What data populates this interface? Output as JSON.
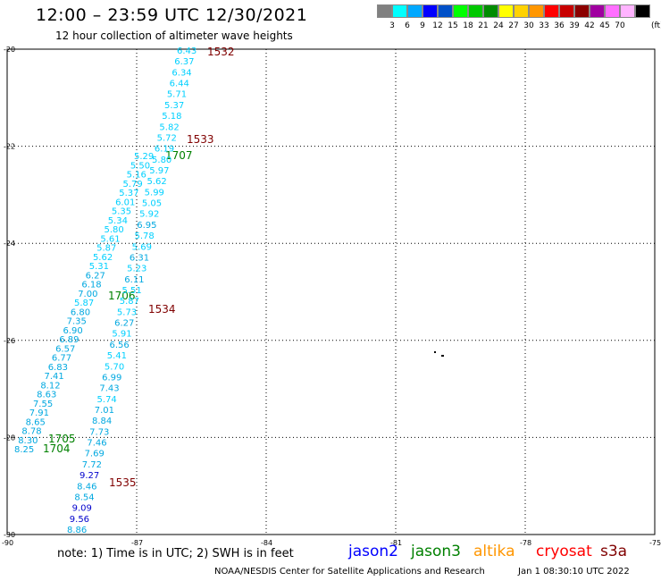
{
  "header": {
    "title": "12:00 – 23:59 UTC 12/30/2021",
    "subtitle": "12 hour collection of altimeter wave heights"
  },
  "legend": {
    "unit": "(ft)",
    "swatches": [
      {
        "color": "#808080",
        "label": ""
      },
      {
        "color": "#00ffff",
        "label": "3"
      },
      {
        "color": "#00a8ff",
        "label": "6"
      },
      {
        "color": "#0000ff",
        "label": "9"
      },
      {
        "color": "#0050c8",
        "label": "12"
      },
      {
        "color": "#00ff00",
        "label": "15"
      },
      {
        "color": "#00c800",
        "label": "18"
      },
      {
        "color": "#008c00",
        "label": "21"
      },
      {
        "color": "#ffff00",
        "label": "24"
      },
      {
        "color": "#ffd200",
        "label": "27"
      },
      {
        "color": "#ff9600",
        "label": "30"
      },
      {
        "color": "#ff0000",
        "label": "33"
      },
      {
        "color": "#c80000",
        "label": "36"
      },
      {
        "color": "#8c0000",
        "label": "39"
      },
      {
        "color": "#a000a0",
        "label": "42"
      },
      {
        "color": "#ff6eff",
        "label": "45"
      },
      {
        "color": "#ffb4ff",
        "label": "70"
      },
      {
        "color": "#000000",
        "label": ""
      }
    ]
  },
  "map": {
    "lat_labels": [
      "-20",
      "-22",
      "-24",
      "-26",
      "-28",
      "-30"
    ],
    "lon_labels": [
      "-90",
      "-87",
      "-84",
      "-81",
      "-78",
      "-75"
    ],
    "colors": {
      "light": "#00d0ff",
      "mid": "#00a8e0",
      "dark": "#0000cc",
      "green": "#008000",
      "maroon": "#800000"
    },
    "tracks": [
      {
        "name": "track-west",
        "start_time": "1704",
        "start_time2": "1705",
        "points": [
          [
            "8.25",
            "mid"
          ],
          [
            "8.30",
            "mid"
          ],
          [
            "8.78",
            "mid"
          ],
          [
            "8.65",
            "mid"
          ],
          [
            "7.91",
            "mid"
          ],
          [
            "7.55",
            "mid"
          ],
          [
            "8.63",
            "mid"
          ],
          [
            "8.12",
            "mid"
          ],
          [
            "7.41",
            "mid"
          ],
          [
            "6.83",
            "mid"
          ],
          [
            "6.77",
            "mid"
          ],
          [
            "6.57",
            "mid"
          ],
          [
            "6.89",
            "mid"
          ],
          [
            "6.90",
            "mid"
          ],
          [
            "7.35",
            "mid"
          ],
          [
            "6.80",
            "mid"
          ],
          [
            "5.87",
            "light"
          ],
          [
            "7.00",
            "mid"
          ],
          [
            "6.18",
            "mid"
          ],
          [
            "6.27",
            "mid"
          ],
          [
            "5.31",
            "light"
          ],
          [
            "5.62",
            "light"
          ],
          [
            "5.87",
            "light"
          ],
          [
            "5.61",
            "light"
          ],
          [
            "5.80",
            "light"
          ],
          [
            "5.34",
            "light"
          ],
          [
            "5.35",
            "light"
          ],
          [
            "6.01",
            "light"
          ],
          [
            "5.37",
            "light"
          ],
          [
            "5.79",
            "light"
          ],
          [
            "5.16",
            "light"
          ],
          [
            "5.50",
            "light"
          ],
          [
            "5.29",
            "light"
          ]
        ],
        "mid_time": "1706",
        "end_time": "1707"
      },
      {
        "name": "track-east",
        "start_time": "1535",
        "points": [
          [
            "8.86",
            "mid"
          ],
          [
            "9.56",
            "dark"
          ],
          [
            "9.09",
            "dark"
          ],
          [
            "8.54",
            "mid"
          ],
          [
            "8.46",
            "mid"
          ],
          [
            "9.27",
            "dark"
          ],
          [
            "7.72",
            "mid"
          ],
          [
            "7.69",
            "mid"
          ],
          [
            "7.46",
            "mid"
          ],
          [
            "7.73",
            "mid"
          ],
          [
            "8.84",
            "mid"
          ],
          [
            "7.01",
            "mid"
          ],
          [
            "5.74",
            "light"
          ],
          [
            "7.43",
            "mid"
          ],
          [
            "6.99",
            "mid"
          ],
          [
            "5.70",
            "light"
          ],
          [
            "5.41",
            "light"
          ],
          [
            "6.56",
            "mid"
          ],
          [
            "5.91",
            "light"
          ],
          [
            "6.27",
            "mid"
          ],
          [
            "5.73",
            "light"
          ],
          [
            "5.87",
            "light"
          ],
          [
            "5.51",
            "light"
          ],
          [
            "6.11",
            "mid"
          ],
          [
            "5.23",
            "light"
          ],
          [
            "6.31",
            "mid"
          ],
          [
            "5.69",
            "light"
          ],
          [
            "5.78",
            "light"
          ],
          [
            "6.95",
            "mid"
          ],
          [
            "5.92",
            "light"
          ],
          [
            "5.05",
            "light"
          ],
          [
            "5.99",
            "light"
          ],
          [
            "5.62",
            "light"
          ],
          [
            "5.97",
            "light"
          ],
          [
            "5.80",
            "light"
          ],
          [
            "6.19",
            "light"
          ],
          [
            "5.72",
            "light"
          ],
          [
            "5.82",
            "light"
          ],
          [
            "5.18",
            "light"
          ],
          [
            "5.37",
            "light"
          ],
          [
            "5.71",
            "light"
          ],
          [
            "6.44",
            "light"
          ],
          [
            "6.34",
            "light"
          ],
          [
            "6.37",
            "light"
          ],
          [
            "6.43",
            "light"
          ]
        ],
        "mid_time1": "1534",
        "mid_time2": "1533",
        "end_time": "1532"
      }
    ]
  },
  "footer": {
    "note": "note:  1) Time is in UTC;  2) SWH is in feet",
    "satellites": [
      {
        "name": "jason2",
        "color": "#0000ff"
      },
      {
        "name": "jason3",
        "color": "#008000"
      },
      {
        "name": "altika",
        "color": "#ff9600"
      },
      {
        "name": "cryosat",
        "color": "#ff0000"
      },
      {
        "name": "s3a",
        "color": "#800000"
      }
    ],
    "credit": "NOAA/NESDIS Center for Satellite Applications and Research",
    "stamp": "Jan  1 08:30:10 UTC 2022"
  }
}
